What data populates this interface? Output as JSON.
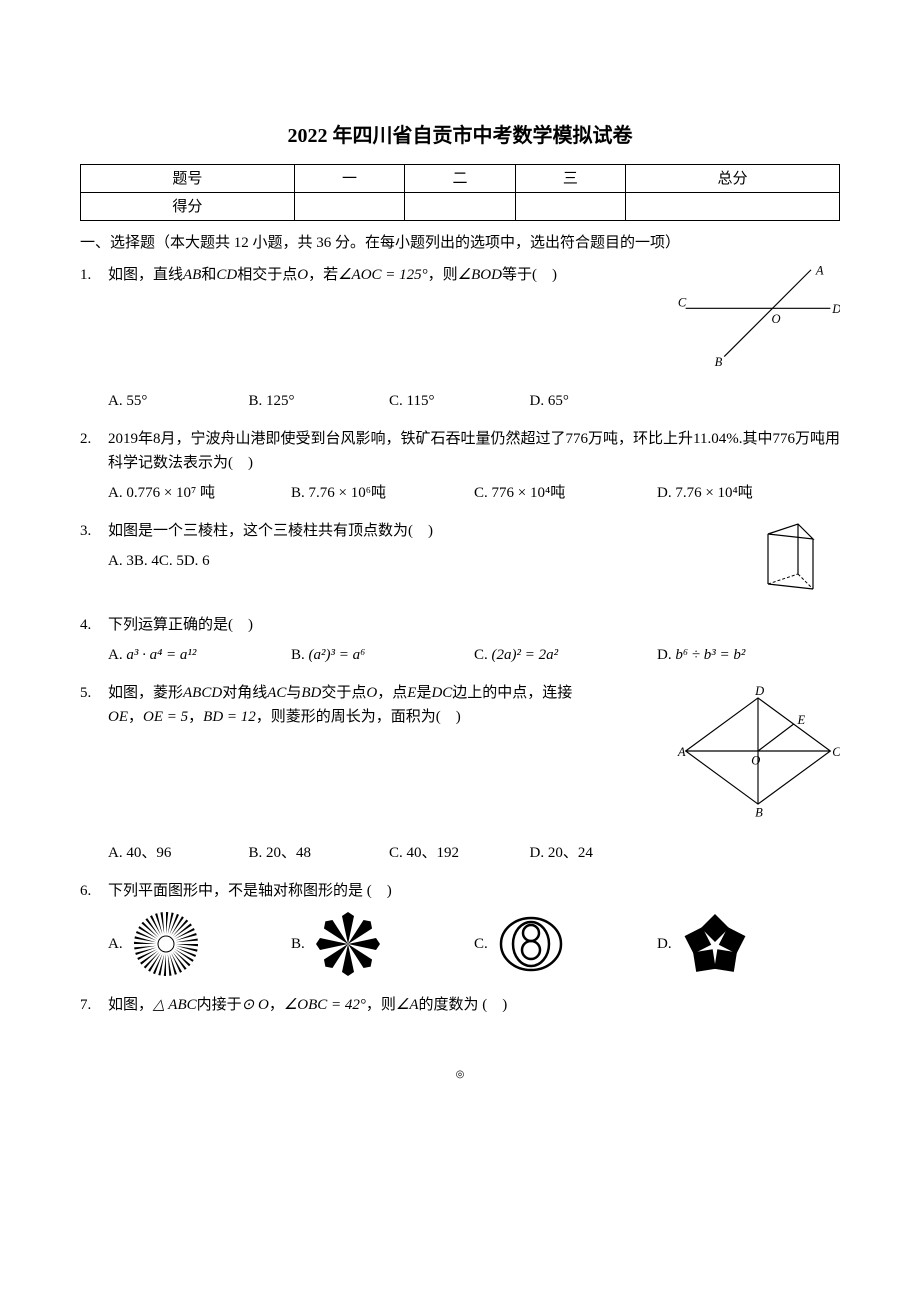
{
  "title": "2022 年四川省自贡市中考数学模拟试卷",
  "score_table": {
    "row1": [
      "题号",
      "一",
      "二",
      "三",
      "总分"
    ],
    "row2": [
      "得分",
      "",
      "",
      "",
      ""
    ]
  },
  "section1_head": "一、选择题（本大题共 12 小题，共 36 分。在每小题列出的选项中，选出符合题目的一项）",
  "q1": {
    "num": "1.",
    "stem_pre": "如图，直线",
    "stem_ab": "AB",
    "stem_and": "和",
    "stem_cd": "CD",
    "stem_mid": "相交于点",
    "stem_o": "O",
    "stem_mid2": "，若",
    "stem_angle": "∠AOC = 125°",
    "stem_mid3": "，则",
    "stem_angle2": "∠BOD",
    "stem_end": "等于(　)",
    "a": "A. 55°",
    "b": "B. 125°",
    "c": "C. 115°",
    "d": "D. 65°",
    "labels": {
      "A": "A",
      "B": "B",
      "C": "C",
      "D": "D",
      "O": "O"
    }
  },
  "q2": {
    "num": "2.",
    "stem": "2019年8月，宁波舟山港即使受到台风影响，铁矿石吞吐量仍然超过了776万吨，环比上升11.04%.其中776万吨用科学记数法表示为(　)",
    "a": "A. 0.776 × 10⁷ 吨",
    "b": "B. 7.76 × 10⁶吨",
    "c": "C. 776 × 10⁴吨",
    "d": "D. 7.76 × 10⁴吨"
  },
  "q3": {
    "num": "3.",
    "stem": "如图是一个三棱柱，这个三棱柱共有顶点数为(　)",
    "choices": "A. 3B. 4C. 5D. 6"
  },
  "q4": {
    "num": "4.",
    "stem": "下列运算正确的是(　)",
    "a_pre": "A. ",
    "a_math": "a³ · a⁴ = a¹²",
    "b_pre": "B. ",
    "b_math": "(a²)³ = a⁶",
    "c_pre": "C. ",
    "c_math": "(2a)² = 2a²",
    "d_pre": "D. ",
    "d_math": "b⁶ ÷ b³ = b²"
  },
  "q5": {
    "num": "5.",
    "stem_1": "如图，菱形",
    "stem_abcd": "ABCD",
    "stem_2": "对角线",
    "stem_ac": "AC",
    "stem_3": "与",
    "stem_bd": "BD",
    "stem_4": "交于点",
    "stem_o": "O",
    "stem_5": "，点",
    "stem_e": "E",
    "stem_6": "是",
    "stem_dc": "DC",
    "stem_7": "边上的中点，连接",
    "stem_8a": "OE",
    "stem_8b": "，",
    "stem_8c": "OE = 5",
    "stem_8d": "，",
    "stem_8e": "BD = 12",
    "stem_8f": "，则菱形的周长为，面积为(　)",
    "a": "A. 40、96",
    "b": "B. 20、48",
    "c": "C. 40、192",
    "d": "D. 20、24",
    "labels": {
      "A": "A",
      "B": "B",
      "C": "C",
      "D": "D",
      "E": "E",
      "O": "O"
    }
  },
  "q6": {
    "num": "6.",
    "stem": "下列平面图形中，不是轴对称图形的是 (　)",
    "a": "A.",
    "b": "B.",
    "c": "C.",
    "d": "D."
  },
  "q7": {
    "num": "7.",
    "stem_1": "如图，",
    "stem_tri": "△ ABC",
    "stem_2": "内接于",
    "stem_circ": "⊙ O",
    "stem_3": "，",
    "stem_ang": "∠OBC = 42°",
    "stem_4": "，则",
    "stem_ang2": "∠A",
    "stem_5": "的度数为 (　)"
  },
  "center_dot": "◎"
}
